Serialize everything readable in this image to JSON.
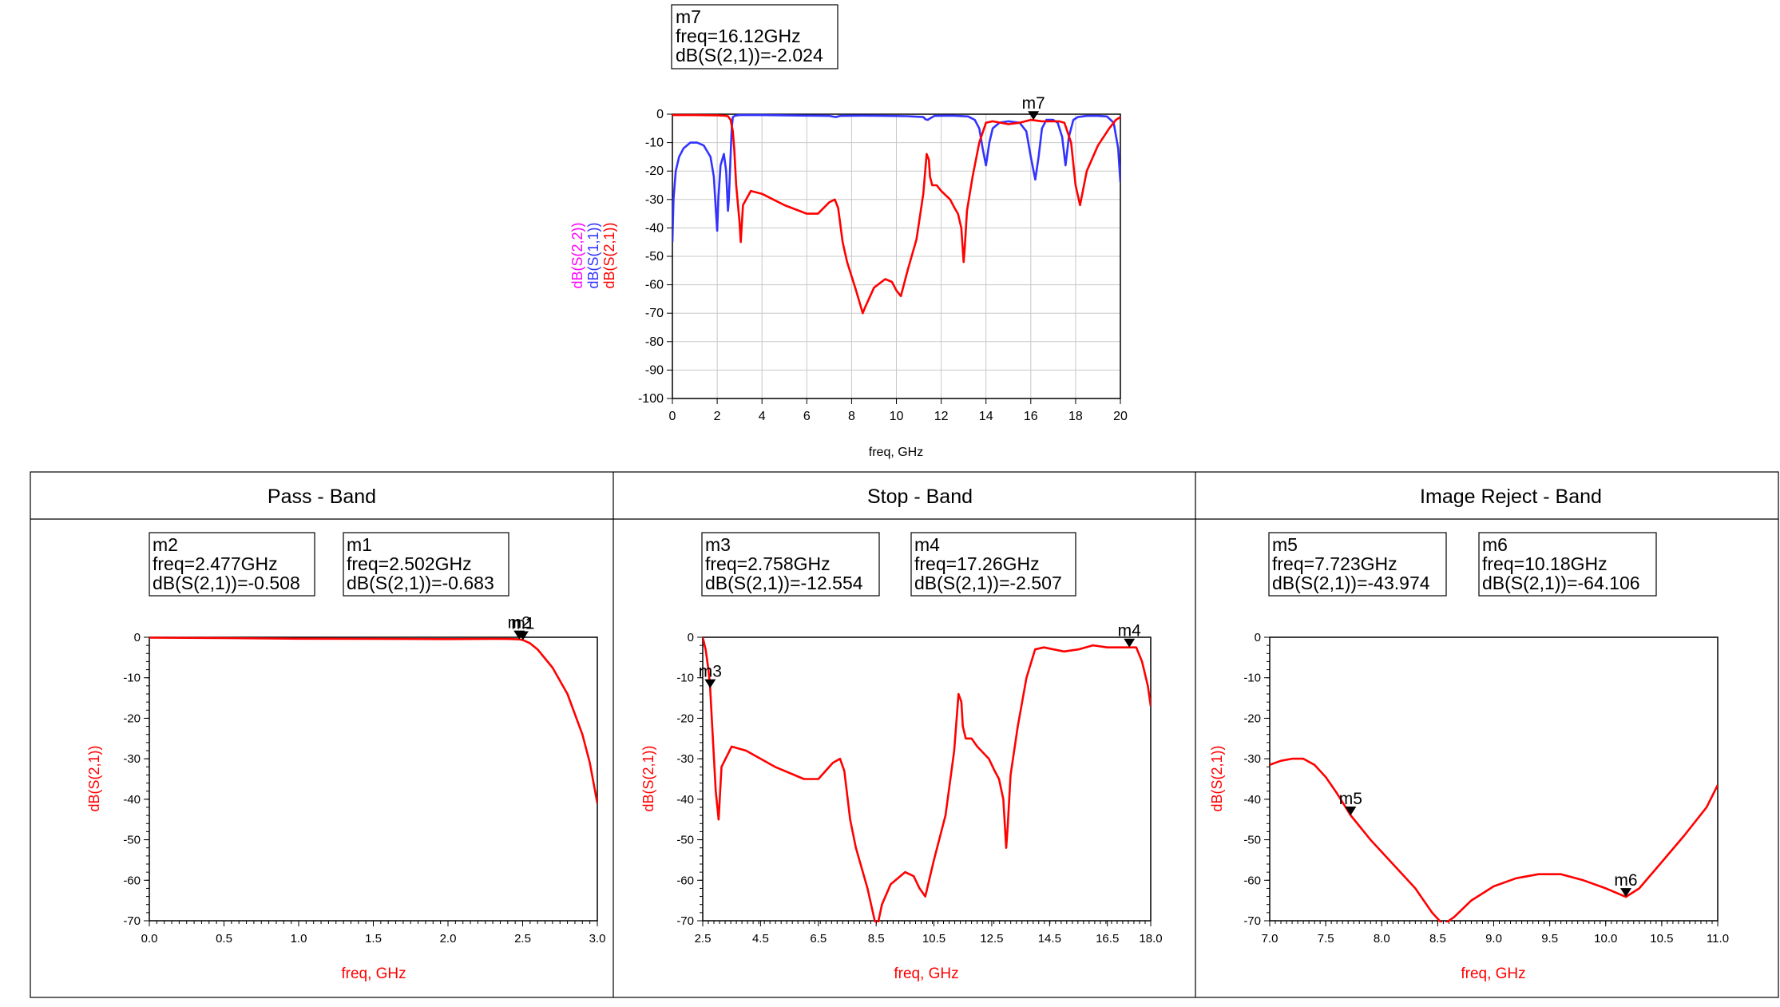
{
  "colors": {
    "s21": "#ff0000",
    "s11": "#3333ff",
    "s22": "#ff00ff",
    "grid": "#c8c8c8",
    "frame": "#000000"
  },
  "panel_titles": [
    "Pass - Band",
    "Stop - Band",
    "Image Reject - Band"
  ],
  "chart_data": [
    {
      "id": "overview",
      "type": "line",
      "xlabel": "freq, GHz",
      "ylabels": [
        "dB(S(2,2))",
        "dB(S(1,1))",
        "dB(S(2,1))"
      ],
      "xlim": [
        0,
        20
      ],
      "ylim": [
        -100,
        0
      ],
      "xticks": [
        0,
        2,
        4,
        6,
        8,
        10,
        12,
        14,
        16,
        18,
        20
      ],
      "yticks": [
        0,
        -10,
        -20,
        -30,
        -40,
        -50,
        -60,
        -70,
        -80,
        -90,
        -100
      ],
      "series": [
        {
          "name": "dB(S(1,1))",
          "color": "#3333ff",
          "x": [
            0,
            0.05,
            0.15,
            0.3,
            0.5,
            0.8,
            1.1,
            1.4,
            1.7,
            1.85,
            1.95,
            2.0,
            2.05,
            2.15,
            2.3,
            2.4,
            2.48,
            2.52,
            2.58,
            2.65,
            2.7,
            2.8,
            3.0,
            4.0,
            5.0,
            6.0,
            7.0,
            7.3,
            7.4,
            7.5,
            8.5,
            9.5,
            10.5,
            11.2,
            11.3,
            11.4,
            11.5,
            11.7,
            12.5,
            13.2,
            13.5,
            13.7,
            13.85,
            14.0,
            14.15,
            14.3,
            14.6,
            15.0,
            15.5,
            15.8,
            16.0,
            16.2,
            16.35,
            16.5,
            16.7,
            17.0,
            17.2,
            17.4,
            17.55,
            17.7,
            17.9,
            18.1,
            18.5,
            19.0,
            19.4,
            19.7,
            19.9,
            20.0
          ],
          "y": [
            -45,
            -30,
            -20,
            -15,
            -12,
            -10,
            -10,
            -11,
            -15,
            -22,
            -35,
            -41,
            -30,
            -18,
            -14,
            -20,
            -34,
            -30,
            -18,
            -5,
            -1,
            -0.5,
            -0.3,
            -0.3,
            -0.4,
            -0.5,
            -0.6,
            -1,
            -0.8,
            -0.6,
            -0.5,
            -0.6,
            -0.7,
            -1,
            -1.8,
            -2,
            -1.5,
            -0.6,
            -0.5,
            -0.8,
            -2,
            -5,
            -12,
            -18,
            -10,
            -5,
            -3,
            -2.5,
            -3,
            -6,
            -15,
            -23,
            -15,
            -5,
            -2,
            -2,
            -3,
            -8,
            -18,
            -8,
            -2,
            -1,
            -0.6,
            -0.6,
            -0.8,
            -3,
            -12,
            -24
          ]
        },
        {
          "name": "dB(S(2,1))",
          "color": "#ff0000",
          "x": [
            0,
            1.0,
            2.0,
            2.3,
            2.48,
            2.6,
            2.7,
            2.76,
            2.85,
            3.0,
            3.05,
            3.15,
            3.5,
            4.0,
            5.0,
            6.0,
            6.5,
            7.0,
            7.25,
            7.4,
            7.6,
            7.8,
            8.2,
            8.5,
            8.6,
            9.0,
            9.5,
            9.8,
            10.0,
            10.2,
            10.5,
            10.9,
            11.2,
            11.35,
            11.45,
            11.5,
            11.6,
            11.8,
            12.0,
            12.4,
            12.6,
            12.75,
            12.9,
            13.0,
            13.05,
            13.15,
            13.4,
            13.7,
            14.0,
            14.3,
            15.0,
            15.5,
            16.0,
            16.5,
            17.0,
            17.26,
            17.5,
            17.8,
            18.0,
            18.2,
            18.5,
            19.0,
            19.5,
            19.8,
            20.0
          ],
          "y": [
            -0.3,
            -0.3,
            -0.4,
            -0.5,
            -0.7,
            -2,
            -6,
            -12,
            -25,
            -38,
            -45,
            -32,
            -27,
            -28,
            -32,
            -35,
            -35,
            -31,
            -30,
            -33,
            -45,
            -52,
            -62,
            -70,
            -68,
            -61,
            -58,
            -59,
            -62,
            -64,
            -55,
            -44,
            -28,
            -14,
            -16,
            -22,
            -25,
            -25,
            -27,
            -30,
            -33,
            -35,
            -40,
            -52,
            -47,
            -34,
            -22,
            -10,
            -3,
            -2.5,
            -3.5,
            -3,
            -2,
            -2.5,
            -2.5,
            -2.5,
            -3,
            -10,
            -25,
            -32,
            -20,
            -11,
            -5,
            -2,
            -1
          ]
        }
      ],
      "markers": [
        {
          "name": "m7",
          "freq": "freq=16.12GHz",
          "value": "dB(S(2,1))=-2.024",
          "x": 16.12,
          "y": -2.024
        }
      ]
    },
    {
      "id": "pass_band",
      "type": "line",
      "title": "Pass - Band",
      "xlabel": "freq, GHz",
      "ylabel": "dB(S(2,1))",
      "xlim": [
        0,
        3
      ],
      "ylim": [
        -70,
        0
      ],
      "xticks": [
        "0.0",
        "0.5",
        "1.0",
        "1.5",
        "2.0",
        "2.5",
        "3.0"
      ],
      "yticks": [
        0,
        -10,
        -20,
        -30,
        -40,
        -50,
        -60,
        -70
      ],
      "series": [
        {
          "name": "dB(S(2,1))",
          "color": "#ff0000",
          "x": [
            0,
            0.5,
            1.0,
            1.5,
            2.0,
            2.3,
            2.4,
            2.477,
            2.502,
            2.55,
            2.6,
            2.7,
            2.8,
            2.9,
            2.95,
            3.0
          ],
          "y": [
            -0.1,
            -0.2,
            -0.35,
            -0.4,
            -0.45,
            -0.4,
            -0.42,
            -0.508,
            -0.683,
            -1.5,
            -3,
            -7.5,
            -14,
            -24,
            -31,
            -41
          ]
        }
      ],
      "markers": [
        {
          "name": "m2",
          "freq": "freq=2.477GHz",
          "value": "dB(S(2,1))=-0.508",
          "x": 2.477,
          "y": -0.508
        },
        {
          "name": "m1",
          "freq": "freq=2.502GHz",
          "value": "dB(S(2,1))=-0.683",
          "x": 2.502,
          "y": -0.683
        }
      ]
    },
    {
      "id": "stop_band",
      "type": "line",
      "title": "Stop - Band",
      "xlabel": "freq, GHz",
      "ylabel": "dB(S(2,1))",
      "xlim": [
        2.5,
        18
      ],
      "ylim": [
        -70,
        0
      ],
      "xticks": [
        "2.5",
        "4.5",
        "6.5",
        "8.5",
        "10.5",
        "12.5",
        "14.5",
        "16.5",
        "18.0"
      ],
      "xtickvals": [
        2.5,
        4.5,
        6.5,
        8.5,
        10.5,
        12.5,
        14.5,
        16.5,
        18.0
      ],
      "yticks": [
        0,
        -10,
        -20,
        -30,
        -40,
        -50,
        -60,
        -70
      ],
      "series": [
        {
          "name": "dB(S(2,1))",
          "color": "#ff0000",
          "x": [
            2.5,
            2.6,
            2.7,
            2.758,
            2.85,
            2.95,
            3.05,
            3.15,
            3.5,
            4.0,
            5.0,
            6.0,
            6.5,
            7.0,
            7.25,
            7.4,
            7.6,
            7.8,
            8.2,
            8.45,
            8.55,
            8.7,
            9.0,
            9.5,
            9.8,
            10.0,
            10.2,
            10.5,
            10.9,
            11.2,
            11.35,
            11.45,
            11.5,
            11.6,
            11.8,
            12.0,
            12.4,
            12.6,
            12.75,
            12.9,
            13.0,
            13.05,
            13.15,
            13.4,
            13.7,
            14.0,
            14.3,
            15.0,
            15.5,
            16.0,
            16.5,
            17.0,
            17.26,
            17.5,
            17.7,
            17.9,
            18.0
          ],
          "y": [
            0,
            -3,
            -8,
            -12.554,
            -25,
            -38,
            -45,
            -32,
            -27,
            -28,
            -32,
            -35,
            -35,
            -31,
            -30,
            -33,
            -45,
            -52,
            -62,
            -70,
            -71,
            -66,
            -61,
            -58,
            -59,
            -62,
            -64,
            -55,
            -44,
            -28,
            -14,
            -16,
            -22,
            -25,
            -25,
            -27,
            -30,
            -33,
            -35,
            -40,
            -52,
            -47,
            -34,
            -22,
            -10,
            -3,
            -2.5,
            -3.5,
            -3,
            -2,
            -2.5,
            -2.5,
            -2.507,
            -2.5,
            -6,
            -12,
            -17
          ]
        }
      ],
      "markers": [
        {
          "name": "m3",
          "freq": "freq=2.758GHz",
          "value": "dB(S(2,1))=-12.554",
          "x": 2.758,
          "y": -12.554
        },
        {
          "name": "m4",
          "freq": "freq=17.26GHz",
          "value": "dB(S(2,1))=-2.507",
          "x": 17.26,
          "y": -2.507
        }
      ]
    },
    {
      "id": "image_reject_band",
      "type": "line",
      "title": "Image Reject - Band",
      "xlabel": "freq, GHz",
      "ylabel": "dB(S(2,1))",
      "xlim": [
        7,
        11
      ],
      "ylim": [
        -70,
        0
      ],
      "xticks": [
        "7.0",
        "7.5",
        "8.0",
        "8.5",
        "9.0",
        "9.5",
        "10.0",
        "10.5",
        "11.0"
      ],
      "yticks": [
        0,
        -10,
        -20,
        -30,
        -40,
        -50,
        -60,
        -70
      ],
      "series": [
        {
          "name": "dB(S(2,1))",
          "color": "#ff0000",
          "x": [
            7.0,
            7.1,
            7.2,
            7.3,
            7.4,
            7.5,
            7.6,
            7.723,
            7.9,
            8.1,
            8.3,
            8.45,
            8.55,
            8.65,
            8.8,
            9.0,
            9.2,
            9.4,
            9.6,
            9.8,
            10.0,
            10.18,
            10.3,
            10.5,
            10.7,
            10.9,
            11.0
          ],
          "y": [
            -31.5,
            -30.5,
            -30,
            -30,
            -31.5,
            -34.5,
            -38.5,
            -43.974,
            -50,
            -56,
            -62,
            -68,
            -71,
            -69,
            -65,
            -61.5,
            -59.5,
            -58.5,
            -58.5,
            -60,
            -62,
            -64.106,
            -62,
            -55.5,
            -49,
            -42,
            -36.5
          ]
        }
      ],
      "markers": [
        {
          "name": "m5",
          "freq": "freq=7.723GHz",
          "value": "dB(S(2,1))=-43.974",
          "x": 7.723,
          "y": -43.974
        },
        {
          "name": "m6",
          "freq": "freq=10.18GHz",
          "value": "dB(S(2,1))=-64.106",
          "x": 10.18,
          "y": -64.106
        }
      ]
    }
  ]
}
